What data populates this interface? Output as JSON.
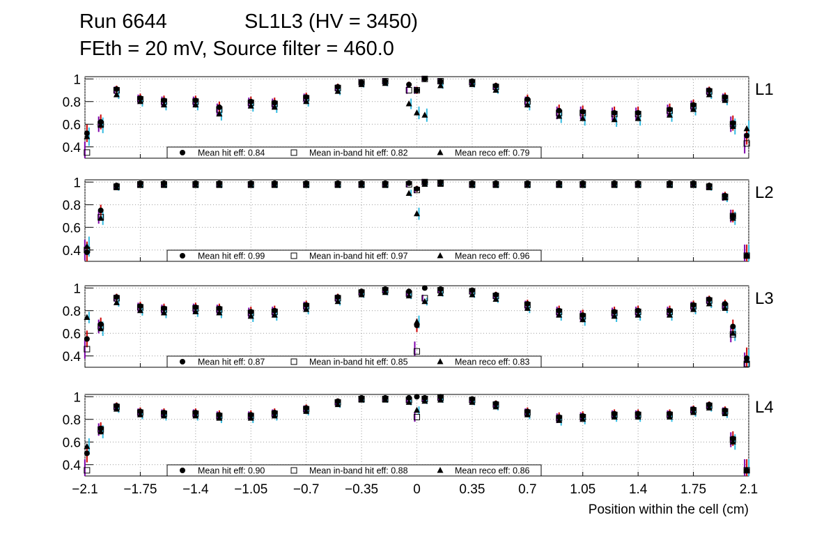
{
  "header": {
    "run": "Run 6644",
    "chamber": "SL1L3 (HV = 3450)",
    "settings": "FEth = 20 mV, Source filter = 460.0"
  },
  "legend_labels": {
    "hit": "Mean hit  eff:",
    "inband": "Mean in-band hit eff:",
    "reco": "Mean reco eff:"
  },
  "colors": {
    "hit_err": "#cc0000",
    "inband_err": "#7d00aa",
    "reco_err": "#33bbe0",
    "grid": "#999999"
  },
  "chart_data": {
    "type": "scatter",
    "xlabel": "Position within the cell (cm)",
    "xlim": [
      -2.1,
      2.1
    ],
    "ylim": [
      0.3,
      1.02
    ],
    "x_ticks": [
      "−2.1",
      "−1.75",
      "−1.4",
      "−1.05",
      "−0.7",
      "−0.35",
      "0",
      "0.35",
      "0.7",
      "1.05",
      "1.4",
      "1.75",
      "2.1"
    ],
    "x_tick_values": [
      -2.1,
      -1.75,
      -1.4,
      -1.05,
      -0.7,
      -0.35,
      0,
      0.35,
      0.7,
      1.05,
      1.4,
      1.75,
      2.1
    ],
    "y_ticks": [
      "0.4",
      "0.6",
      "0.8",
      "1"
    ],
    "y_tick_values": [
      0.4,
      0.6,
      0.8,
      1.0
    ],
    "grid": true,
    "panels": [
      {
        "label": "L1",
        "means": {
          "hit": "0.84",
          "inband": "0.82",
          "reco": "0.79"
        },
        "x": [
          -2.0875,
          -2.0,
          -1.9,
          -1.75,
          -1.6,
          -1.4,
          -1.25,
          -1.05,
          -0.9,
          -0.7,
          -0.5,
          -0.35,
          -0.2,
          -0.05,
          0.0,
          0.05,
          0.15,
          0.35,
          0.5,
          0.7,
          0.9,
          1.05,
          1.25,
          1.4,
          1.6,
          1.75,
          1.85,
          1.95,
          2.0,
          2.0875
        ],
        "series": [
          {
            "name": "Mean hit eff",
            "marker": "circle",
            "values": [
              0.52,
              0.62,
              0.91,
              0.83,
              0.81,
              0.81,
              0.75,
              0.8,
              0.79,
              0.84,
              0.93,
              0.97,
              0.98,
              0.95,
              0.9,
              1.0,
              0.98,
              0.98,
              0.94,
              0.82,
              0.72,
              0.71,
              0.7,
              0.7,
              0.73,
              0.77,
              0.9,
              0.84,
              0.61,
              0.5
            ]
          },
          {
            "name": "Mean in-band hit eff",
            "marker": "open-square",
            "values": [
              0.35,
              0.6,
              0.9,
              0.82,
              0.8,
              0.8,
              0.73,
              0.79,
              0.78,
              0.83,
              0.92,
              0.97,
              0.98,
              0.9,
              0.9,
              1.0,
              0.98,
              0.97,
              0.93,
              0.8,
              0.7,
              0.7,
              0.69,
              0.69,
              0.72,
              0.76,
              0.89,
              0.83,
              0.6,
              0.43
            ]
          },
          {
            "name": "Mean reco eff",
            "marker": "triangle",
            "values": [
              0.49,
              0.59,
              0.86,
              0.8,
              0.77,
              0.77,
              0.69,
              0.76,
              0.75,
              0.8,
              0.89,
              0.95,
              0.96,
              0.78,
              0.7,
              0.68,
              0.94,
              0.95,
              0.9,
              0.77,
              0.67,
              0.65,
              0.64,
              0.65,
              0.68,
              0.73,
              0.86,
              0.81,
              0.58,
              0.56
            ]
          }
        ]
      },
      {
        "label": "L2",
        "means": {
          "hit": "0.99",
          "inband": "0.97",
          "reco": "0.96"
        },
        "x": [
          -2.0875,
          -2.0,
          -1.9,
          -1.75,
          -1.6,
          -1.4,
          -1.25,
          -1.05,
          -0.9,
          -0.7,
          -0.5,
          -0.35,
          -0.2,
          -0.05,
          0.0,
          0.05,
          0.15,
          0.35,
          0.5,
          0.7,
          0.9,
          1.05,
          1.25,
          1.4,
          1.6,
          1.75,
          1.85,
          1.95,
          2.0,
          2.0875
        ],
        "series": [
          {
            "name": "Mean hit eff",
            "marker": "circle",
            "values": [
              0.38,
              0.75,
              0.97,
              0.99,
              0.99,
              0.99,
              0.99,
              0.99,
              0.99,
              0.99,
              0.99,
              0.99,
              0.99,
              0.99,
              0.94,
              1.0,
              1.0,
              0.99,
              0.99,
              0.99,
              0.99,
              0.99,
              0.99,
              0.99,
              0.99,
              0.99,
              0.97,
              0.88,
              0.7,
              0.35
            ]
          },
          {
            "name": "Mean in-band hit eff",
            "marker": "open-square",
            "values": [
              0.4,
              0.69,
              0.96,
              0.98,
              0.98,
              0.98,
              0.98,
              0.98,
              0.98,
              0.98,
              0.98,
              0.98,
              0.98,
              0.98,
              0.93,
              1.0,
              0.99,
              0.98,
              0.98,
              0.98,
              0.98,
              0.98,
              0.98,
              0.98,
              0.98,
              0.98,
              0.96,
              0.87,
              0.7,
              0.35
            ]
          },
          {
            "name": "Mean reco eff",
            "marker": "triangle",
            "values": [
              0.43,
              0.68,
              0.95,
              0.97,
              0.97,
              0.97,
              0.97,
              0.97,
              0.97,
              0.97,
              0.97,
              0.97,
              0.97,
              0.9,
              0.72,
              0.98,
              0.98,
              0.97,
              0.97,
              0.97,
              0.97,
              0.97,
              0.97,
              0.97,
              0.97,
              0.97,
              0.95,
              0.86,
              0.68,
              0.35
            ]
          }
        ]
      },
      {
        "label": "L3",
        "means": {
          "hit": "0.87",
          "inband": "0.85",
          "reco": "0.83"
        },
        "x": [
          -2.0875,
          -2.0,
          -1.9,
          -1.75,
          -1.6,
          -1.4,
          -1.25,
          -1.05,
          -0.9,
          -0.7,
          -0.5,
          -0.35,
          -0.2,
          -0.05,
          0.0,
          0.05,
          0.15,
          0.35,
          0.5,
          0.7,
          0.9,
          1.05,
          1.25,
          1.4,
          1.6,
          1.75,
          1.85,
          1.95,
          2.0,
          2.0875
        ],
        "series": [
          {
            "name": "Mean hit eff",
            "marker": "circle",
            "values": [
              0.55,
              0.68,
              0.92,
              0.84,
              0.82,
              0.83,
              0.82,
              0.79,
              0.8,
              0.85,
              0.92,
              0.97,
              0.99,
              0.97,
              0.67,
              1.0,
              0.99,
              0.98,
              0.94,
              0.86,
              0.8,
              0.76,
              0.79,
              0.8,
              0.8,
              0.85,
              0.9,
              0.86,
              0.66,
              0.38
            ]
          },
          {
            "name": "Mean in-band hit eff",
            "marker": "open-square",
            "values": [
              0.46,
              0.66,
              0.91,
              0.83,
              0.81,
              0.82,
              0.81,
              0.78,
              0.79,
              0.84,
              0.91,
              0.96,
              0.98,
              0.95,
              0.44,
              0.91,
              0.98,
              0.97,
              0.93,
              0.85,
              0.79,
              0.75,
              0.78,
              0.79,
              0.79,
              0.84,
              0.89,
              0.84,
              0.59,
              0.33
            ]
          },
          {
            "name": "Mean reco eff",
            "marker": "triangle",
            "values": [
              0.74,
              0.64,
              0.87,
              0.8,
              0.78,
              0.79,
              0.78,
              0.75,
              0.76,
              0.81,
              0.88,
              0.94,
              0.96,
              0.93,
              0.7,
              0.88,
              0.95,
              0.94,
              0.9,
              0.82,
              0.76,
              0.72,
              0.75,
              0.76,
              0.76,
              0.81,
              0.86,
              0.82,
              0.6,
              0.36
            ]
          }
        ]
      },
      {
        "label": "L4",
        "means": {
          "hit": "0.90",
          "inband": "0.88",
          "reco": "0.86"
        },
        "x": [
          -2.0875,
          -2.0,
          -1.9,
          -1.75,
          -1.6,
          -1.4,
          -1.25,
          -1.05,
          -0.9,
          -0.7,
          -0.5,
          -0.35,
          -0.2,
          -0.05,
          0.0,
          0.05,
          0.15,
          0.35,
          0.5,
          0.7,
          0.9,
          1.05,
          1.25,
          1.4,
          1.6,
          1.75,
          1.85,
          1.95,
          2.0,
          2.0875
        ],
        "series": [
          {
            "name": "Mean hit eff",
            "marker": "circle",
            "values": [
              0.5,
              0.72,
              0.92,
              0.87,
              0.86,
              0.86,
              0.84,
              0.84,
              0.86,
              0.9,
              0.96,
              0.99,
              0.99,
              0.99,
              1.0,
              0.99,
              1.0,
              0.98,
              0.94,
              0.87,
              0.82,
              0.83,
              0.85,
              0.85,
              0.85,
              0.89,
              0.93,
              0.88,
              0.63,
              0.35
            ]
          },
          {
            "name": "Mean in-band hit eff",
            "marker": "open-square",
            "values": [
              0.35,
              0.71,
              0.91,
              0.86,
              0.85,
              0.85,
              0.83,
              0.83,
              0.85,
              0.89,
              0.95,
              0.98,
              0.98,
              0.97,
              0.82,
              0.98,
              0.99,
              0.97,
              0.93,
              0.86,
              0.81,
              0.82,
              0.84,
              0.84,
              0.84,
              0.88,
              0.92,
              0.87,
              0.62,
              0.35
            ]
          },
          {
            "name": "Mean reco eff",
            "marker": "triangle",
            "values": [
              0.56,
              0.69,
              0.89,
              0.84,
              0.83,
              0.83,
              0.81,
              0.81,
              0.83,
              0.87,
              0.93,
              0.97,
              0.97,
              0.95,
              0.88,
              0.96,
              0.97,
              0.95,
              0.91,
              0.84,
              0.79,
              0.8,
              0.82,
              0.82,
              0.82,
              0.86,
              0.9,
              0.85,
              0.6,
              0.35
            ]
          }
        ]
      }
    ]
  }
}
